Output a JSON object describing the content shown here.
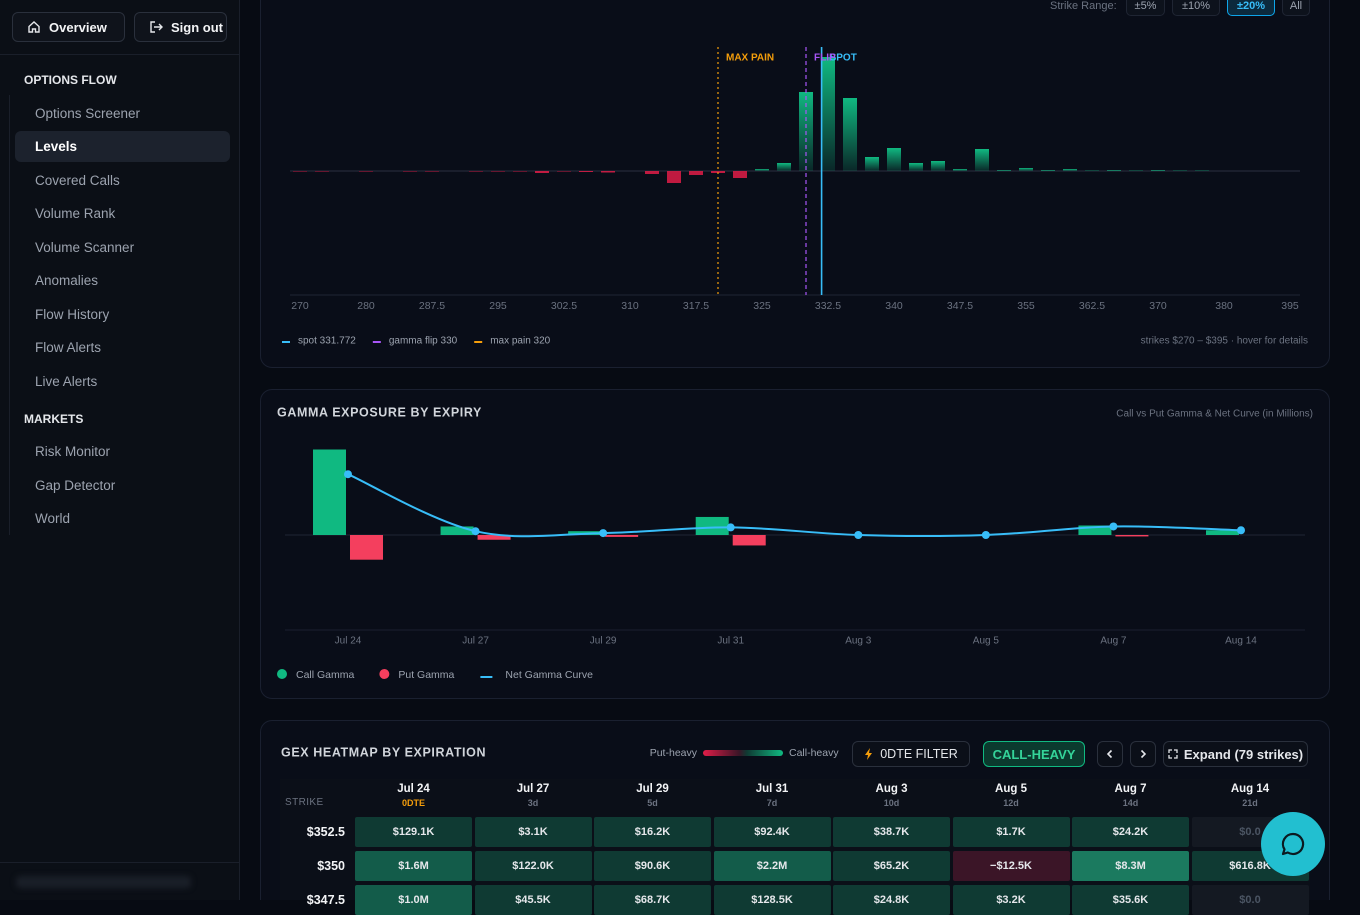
{
  "sidebar": {
    "buttons": [
      "Overview",
      "Sign out"
    ],
    "sections": [
      {
        "title": "OPTIONS FLOW",
        "items": [
          "Options Screener",
          "Levels",
          "Covered Calls",
          "Volume Rank",
          "Volume Scanner",
          "Anomalies",
          "Flow History",
          "Flow Alerts",
          "Live Alerts"
        ]
      },
      {
        "title": "MARKETS",
        "items": [
          "Risk Monitor",
          "Gap Detector",
          "World"
        ]
      }
    ],
    "active": "Levels"
  },
  "strike_panel": {
    "range_label": "Strike Range:",
    "range_options": [
      "±5%",
      "±10%",
      "±20%",
      "All"
    ],
    "active_range": "±20%",
    "footnote": "strikes $270 – $395 · hover for details",
    "chart": {
      "type": "bar",
      "categories": [
        "270",
        null,
        null,
        "280",
        null,
        null,
        "287.5",
        null,
        null,
        "295",
        null,
        null,
        "302.5",
        null,
        null,
        "310",
        null,
        null,
        "317.5",
        null,
        null,
        "325",
        null,
        null,
        "332.5",
        null,
        null,
        "340",
        null,
        null,
        "347.5",
        null,
        null,
        "355",
        null,
        null,
        "362.5",
        null,
        null,
        "370",
        null,
        null,
        "380",
        null,
        null,
        "395"
      ],
      "values": [
        -0.5,
        -0.5,
        0,
        -0.5,
        0,
        -0.5,
        -0.5,
        0,
        -0.5,
        -0.5,
        -0.5,
        -2,
        -0.5,
        -1,
        -1.5,
        0,
        -3,
        -12,
        -4,
        -2,
        -7,
        2,
        8,
        79,
        114,
        73,
        14,
        23,
        8,
        10,
        2,
        22,
        1,
        3,
        1,
        2,
        0.5,
        1,
        0.5,
        1,
        0.5,
        0.5,
        0,
        0,
        0,
        0
      ],
      "ylim": [
        -124,
        126
      ],
      "positive_color": "#10b981",
      "negative_color": "#e11d48",
      "markers": [
        {
          "legend": "spot 331.772",
          "tag": "SPOT",
          "value": 331.772,
          "color": "#38bdf8",
          "style": "solid"
        },
        {
          "legend": "gamma flip 330",
          "tag": "FLIP",
          "value": 330,
          "color": "#a855f7",
          "style": "dashed"
        },
        {
          "legend": "max pain 320",
          "tag": "MAX PAIN",
          "value": 320,
          "color": "#f59e0b",
          "style": "dotted"
        }
      ]
    }
  },
  "expiry_panel": {
    "chart": {
      "type": "bar-line",
      "title": "GAMMA EXPOSURE BY EXPIRY",
      "subtitle": "Call vs Put Gamma & Net Curve (in Millions)",
      "categories": [
        "Jul 24",
        "Jul 27",
        "Jul 29",
        "Jul 31",
        "Aug 3",
        "Aug 5",
        "Aug 7",
        "Aug 14"
      ],
      "series": [
        {
          "name": "Call Gamma",
          "color": "#10b981",
          "type": "bar",
          "values": [
            90,
            9,
            4,
            19,
            0,
            0,
            10,
            5
          ]
        },
        {
          "name": "Put Gamma",
          "color": "#f43f5e",
          "type": "bar",
          "values": [
            -26,
            -5,
            -2,
            -11,
            0,
            0,
            -1.5,
            0
          ]
        },
        {
          "name": "Net Gamma Curve",
          "color": "#38bdf8",
          "type": "line",
          "values": [
            64,
            4,
            2,
            8,
            0,
            0,
            9,
            5
          ]
        }
      ],
      "ylim": [
        -100,
        100
      ]
    }
  },
  "heatmap": {
    "title": "GEX HEATMAP BY EXPIRATION",
    "legend": [
      "Put-heavy",
      "Call-heavy"
    ],
    "buttons": {
      "filter": "0DTE FILTER",
      "mode": "CALL-HEAVY",
      "expand": "Expand (79 strikes)"
    },
    "strike_header": "STRIKE",
    "columns": [
      {
        "date": "Jul 24",
        "dte": "0DTE"
      },
      {
        "date": "Jul 27",
        "dte": "3d"
      },
      {
        "date": "Jul 29",
        "dte": "5d"
      },
      {
        "date": "Jul 31",
        "dte": "7d"
      },
      {
        "date": "Aug 3",
        "dte": "10d"
      },
      {
        "date": "Aug 5",
        "dte": "12d"
      },
      {
        "date": "Aug 7",
        "dte": "14d"
      },
      {
        "date": "Aug 14",
        "dte": "21d"
      }
    ],
    "rows": [
      {
        "strike": "$352.5",
        "values": [
          129100,
          3100,
          16200,
          92400,
          38700,
          1700,
          24200,
          0
        ],
        "value_labels": [
          "$129.1K",
          "$3.1K",
          "$16.2K",
          "$92.4K",
          "$38.7K",
          "$1.7K",
          "$24.2K",
          "$0.0"
        ]
      },
      {
        "strike": "$350",
        "values": [
          1600000,
          122000,
          90600,
          2200000,
          65200,
          -12500,
          8300000,
          616800
        ],
        "value_labels": [
          "$1.6M",
          "$122.0K",
          "$90.6K",
          "$2.2M",
          "$65.2K",
          "−$12.5K",
          "$8.3M",
          "$616.8K"
        ]
      },
      {
        "strike": "$347.5",
        "values": [
          1000000,
          45500,
          68700,
          128500,
          24800,
          3200,
          35600,
          0
        ],
        "value_labels": [
          "$1.0M",
          "$45.5K",
          "$68.7K",
          "$128.5K",
          "$24.8K",
          "$3.2K",
          "$35.6K",
          "$0.0"
        ]
      }
    ]
  }
}
